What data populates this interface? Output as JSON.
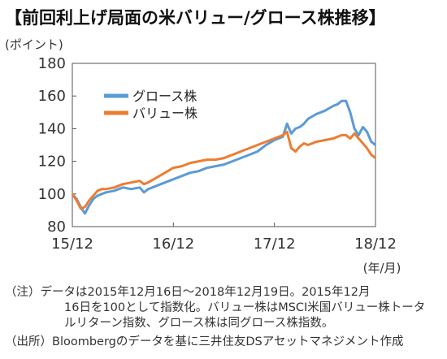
{
  "title": "【前回利上げ局面の米バリュー/グロース株推移】",
  "unit_label": "(ポイント)",
  "x_unit_label": "(年/月)",
  "notes": {
    "line1": "（注）データは2015年12月16日～2018年12月19日。2015年12月",
    "line2": "16日を100として指数化。バリュー株はMSCI米国バリュー株トータ",
    "line3": "ルリターン指数、グロース株は同グロース株指数。",
    "line4": "（出所）Bloombergのデータを基に三井住友DSアセットマネジメント作成"
  },
  "chart_data": {
    "type": "line",
    "ylim": [
      80,
      180
    ],
    "yticks": [
      80,
      100,
      120,
      140,
      160,
      180
    ],
    "xlim": [
      0,
      36
    ],
    "xticks": [
      {
        "value": 0,
        "label": "15/12"
      },
      {
        "value": 12,
        "label": "16/12"
      },
      {
        "value": 24,
        "label": "17/12"
      },
      {
        "value": 36,
        "label": "18/12"
      }
    ],
    "legend_position": "top-left",
    "grid": false,
    "series": [
      {
        "name": "グロース株",
        "color": "#5B9BD5",
        "x": [
          0,
          0.5,
          1,
          1.5,
          2,
          2.5,
          3,
          3.5,
          4,
          5,
          6,
          7,
          8,
          8.5,
          9,
          10,
          11,
          12,
          13,
          14,
          15,
          16,
          17,
          18,
          19,
          20,
          21,
          22,
          23,
          24,
          25,
          25.5,
          26,
          26.5,
          27,
          27.5,
          28,
          29,
          30,
          31,
          31.5,
          32,
          32.5,
          33,
          33.5,
          34,
          34.5,
          35,
          35.5,
          36
        ],
        "values": [
          100,
          97,
          92,
          88,
          93,
          97,
          99,
          100,
          101,
          102,
          104,
          103,
          104,
          101,
          103,
          105,
          107,
          109,
          111,
          113,
          114,
          116,
          117,
          118,
          120,
          122,
          124,
          126,
          130,
          133,
          135,
          143,
          137,
          140,
          141,
          143,
          146,
          149,
          151,
          154,
          155,
          157,
          157,
          150,
          140,
          136,
          141,
          138,
          132,
          130
        ]
      },
      {
        "name": "バリュー株",
        "color": "#ED7D31",
        "x": [
          0,
          0.5,
          1,
          1.5,
          2,
          2.5,
          3,
          3.5,
          4,
          5,
          6,
          7,
          8,
          8.5,
          9,
          10,
          11,
          12,
          13,
          14,
          15,
          16,
          17,
          18,
          19,
          20,
          21,
          22,
          23,
          24,
          25,
          25.5,
          26,
          26.5,
          27,
          27.5,
          28,
          29,
          30,
          31,
          31.5,
          32,
          32.5,
          33,
          33.5,
          34,
          34.5,
          35,
          35.5,
          36
        ],
        "values": [
          100,
          96,
          91,
          92,
          96,
          99,
          102,
          103,
          103,
          104,
          106,
          107,
          108,
          106,
          107,
          110,
          113,
          116,
          117,
          119,
          120,
          121,
          121,
          122,
          124,
          126,
          128,
          130,
          132,
          134,
          136,
          138,
          128,
          126,
          129,
          131,
          130,
          132,
          133,
          134,
          135,
          136,
          136,
          134,
          137,
          134,
          131,
          128,
          124,
          122
        ]
      }
    ]
  }
}
